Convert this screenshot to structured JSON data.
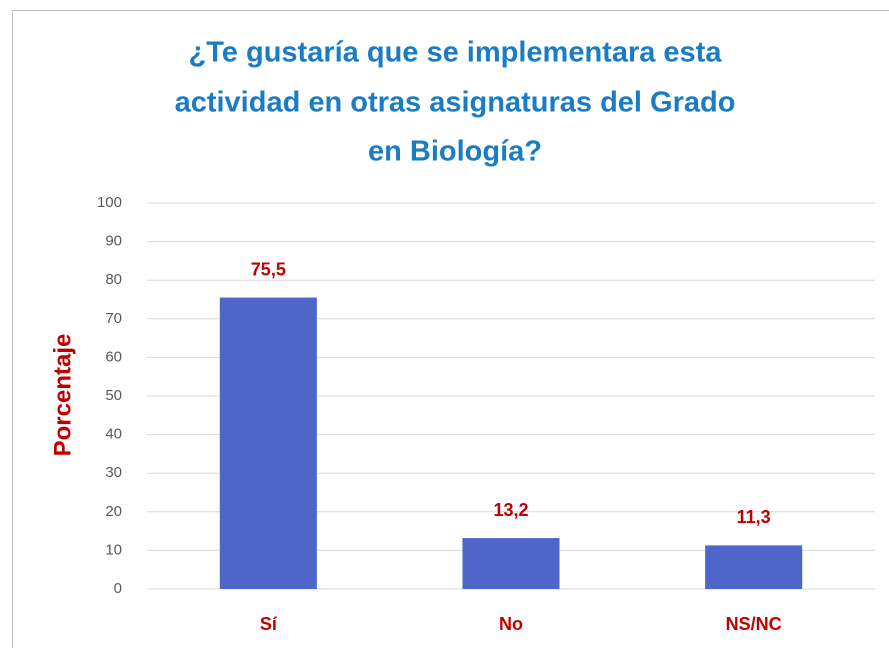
{
  "chart_data": {
    "type": "bar",
    "title": [
      "¿Te gustaría que se implementara esta",
      "actividad en otras asignaturas del Grado",
      "en Biología?"
    ],
    "ylabel": "Porcentaje",
    "categories": [
      "Sí",
      "No",
      "NS/NC"
    ],
    "values": [
      75.5,
      13.2,
      11.3
    ],
    "value_labels": [
      "75,5",
      "13,2",
      "11,3"
    ],
    "color": "#4e66c8",
    "ylim": [
      0,
      100
    ],
    "yticks": [
      0,
      10,
      20,
      30,
      40,
      50,
      60,
      70,
      80,
      90,
      100
    ],
    "grid": true
  }
}
